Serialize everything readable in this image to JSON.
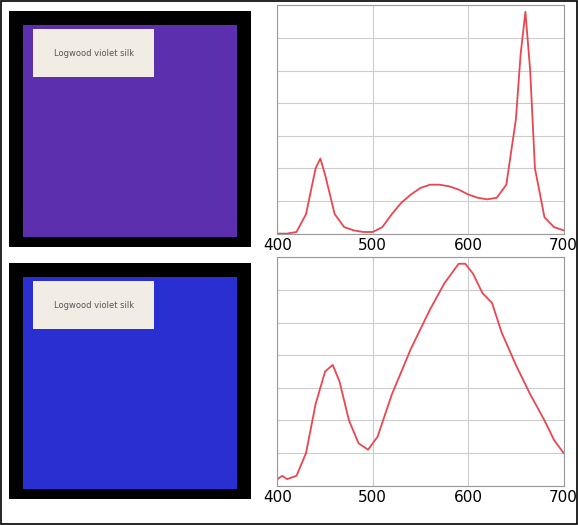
{
  "photos": [
    {
      "label": "Logwood violet silk",
      "color": "#5b2fae"
    },
    {
      "label": "Logwood violet silk",
      "color": "#2a2fd2"
    }
  ],
  "chart_data": [
    {
      "type": "line",
      "color": "#e8474f",
      "grid": true,
      "tick_labels": "x",
      "xlim": [
        400,
        700
      ],
      "xticks": [
        400,
        500,
        600,
        700
      ],
      "ylim": [
        0,
        7
      ],
      "yticks": [
        0,
        1,
        2,
        3,
        4,
        5,
        6,
        7
      ],
      "x": [
        400,
        410,
        420,
        430,
        440,
        445,
        450,
        460,
        470,
        480,
        490,
        500,
        510,
        520,
        530,
        540,
        550,
        560,
        570,
        580,
        590,
        600,
        610,
        620,
        630,
        640,
        650,
        655,
        660,
        665,
        670,
        680,
        690,
        700
      ],
      "values": [
        0,
        0,
        0.05,
        0.6,
        2.0,
        2.3,
        1.8,
        0.6,
        0.2,
        0.1,
        0.05,
        0.05,
        0.2,
        0.6,
        0.95,
        1.2,
        1.4,
        1.5,
        1.5,
        1.45,
        1.35,
        1.2,
        1.1,
        1.05,
        1.1,
        1.5,
        3.5,
        5.5,
        6.8,
        5.0,
        2.0,
        0.5,
        0.2,
        0.1
      ]
    },
    {
      "type": "line",
      "color": "#e8474f",
      "grid": true,
      "tick_labels": "x",
      "xlim": [
        400,
        700
      ],
      "xticks": [
        400,
        500,
        600,
        700
      ],
      "ylim": [
        0,
        7
      ],
      "yticks": [
        0,
        1,
        2,
        3,
        4,
        5,
        6,
        7
      ],
      "x": [
        400,
        405,
        410,
        420,
        430,
        440,
        450,
        458,
        465,
        475,
        485,
        495,
        505,
        520,
        540,
        560,
        575,
        590,
        597,
        605,
        615,
        625,
        635,
        650,
        665,
        680,
        690,
        700
      ],
      "values": [
        0.2,
        0.3,
        0.2,
        0.3,
        1.0,
        2.5,
        3.5,
        3.7,
        3.2,
        2.0,
        1.3,
        1.1,
        1.5,
        2.8,
        4.2,
        5.4,
        6.2,
        6.8,
        6.8,
        6.5,
        5.9,
        5.6,
        4.7,
        3.7,
        2.8,
        2.0,
        1.4,
        1.0
      ]
    }
  ]
}
